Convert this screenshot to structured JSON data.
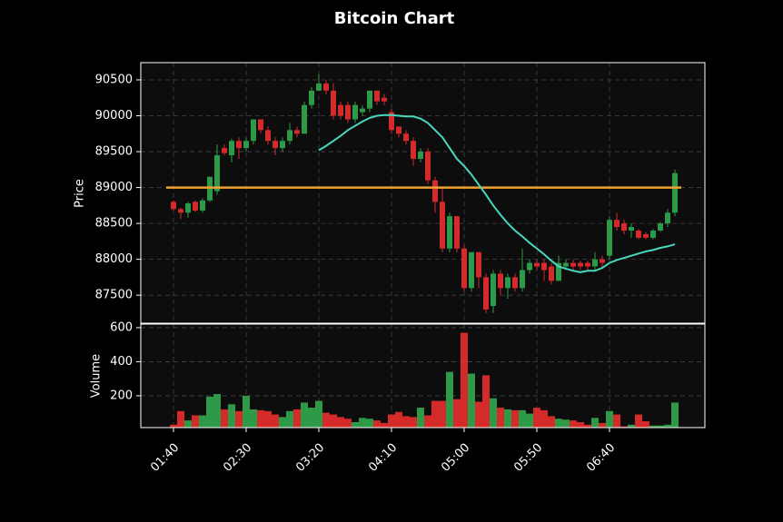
{
  "chart_data": {
    "type": "candlestick",
    "title": "Bitcoin Chart",
    "ylabel": "Price",
    "categories": [
      "01:40",
      "01:45",
      "01:50",
      "01:55",
      "02:00",
      "02:05",
      "02:10",
      "02:15",
      "02:20",
      "02:25",
      "02:30",
      "02:35",
      "02:40",
      "02:45",
      "02:50",
      "02:55",
      "03:00",
      "03:05",
      "03:10",
      "03:15",
      "03:20",
      "03:25",
      "03:30",
      "03:35",
      "03:40",
      "03:45",
      "03:50",
      "03:55",
      "04:00",
      "04:05",
      "04:10",
      "04:15",
      "04:20",
      "04:25",
      "04:30",
      "04:35",
      "04:40",
      "04:45",
      "04:50",
      "04:55",
      "05:00",
      "05:05",
      "05:10",
      "05:15",
      "05:20",
      "05:25",
      "05:30",
      "05:35",
      "05:40",
      "05:45",
      "05:50",
      "05:55",
      "06:00",
      "06:05",
      "06:10",
      "06:15",
      "06:20",
      "06:25",
      "06:30",
      "06:35",
      "06:40",
      "06:45",
      "06:50",
      "06:55",
      "07:00",
      "07:05",
      "07:10",
      "07:15",
      "07:20",
      "07:25"
    ],
    "xticks": [
      "01:40",
      "02:30",
      "03:20",
      "04:10",
      "05:00",
      "05:50",
      "06:40"
    ],
    "open": [
      88800,
      88700,
      88650,
      88800,
      88680,
      88820,
      88950,
      89550,
      89450,
      89650,
      89550,
      89650,
      89950,
      89800,
      89650,
      89550,
      89650,
      89800,
      89750,
      90150,
      90350,
      90450,
      90350,
      90150,
      90150,
      89950,
      90050,
      90100,
      90350,
      90250,
      90050,
      89850,
      89750,
      89650,
      89400,
      89500,
      89100,
      88800,
      88150,
      88600,
      88150,
      87600,
      88100,
      87750,
      87350,
      87800,
      87600,
      87750,
      87600,
      87850,
      87950,
      87950,
      87900,
      87700,
      87900,
      87950,
      87950,
      87950,
      87900,
      88000,
      88050,
      88550,
      88500,
      88400,
      88400,
      88350,
      88300,
      88400,
      88500,
      88650
    ],
    "high": [
      88820,
      88720,
      88800,
      88820,
      88850,
      89150,
      89600,
      89600,
      89680,
      89700,
      89700,
      89950,
      89950,
      89850,
      89700,
      89700,
      89900,
      89850,
      90200,
      90400,
      90580,
      90500,
      90450,
      90200,
      90200,
      90200,
      90150,
      90350,
      90350,
      90300,
      90100,
      89850,
      89800,
      89700,
      89550,
      89550,
      89150,
      89000,
      88650,
      88600,
      88200,
      88100,
      88100,
      87800,
      87850,
      87850,
      87800,
      87800,
      88150,
      88000,
      88000,
      88000,
      87950,
      88050,
      88000,
      88000,
      87980,
      87980,
      88100,
      88050,
      88600,
      88650,
      88550,
      88500,
      88420,
      88380,
      88420,
      88520,
      88700,
      89250
    ],
    "low": [
      88680,
      88560,
      88580,
      88660,
      88650,
      88800,
      88900,
      89450,
      89350,
      89400,
      89500,
      89600,
      89750,
      89600,
      89450,
      89500,
      89600,
      89700,
      89750,
      90100,
      90350,
      90300,
      89950,
      89950,
      89900,
      89900,
      90000,
      90050,
      90150,
      90150,
      89750,
      89700,
      89600,
      89300,
      89350,
      89050,
      88650,
      88100,
      88100,
      88100,
      87550,
      87550,
      87600,
      87250,
      87250,
      87500,
      87450,
      87550,
      87550,
      87800,
      87850,
      87700,
      87650,
      87700,
      87850,
      87850,
      87850,
      87850,
      87850,
      87900,
      88000,
      88400,
      88350,
      88300,
      88280,
      88280,
      88280,
      88380,
      88450,
      88600
    ],
    "close": [
      88700,
      88650,
      88780,
      88680,
      88820,
      89150,
      89450,
      89480,
      89650,
      89550,
      89650,
      89950,
      89800,
      89650,
      89550,
      89650,
      89800,
      89750,
      90150,
      90350,
      90450,
      90350,
      90000,
      90000,
      89950,
      90150,
      90100,
      90350,
      90200,
      90200,
      89800,
      89750,
      89650,
      89400,
      89500,
      89100,
      88800,
      88150,
      88600,
      88150,
      87600,
      88100,
      87750,
      87300,
      87800,
      87600,
      87750,
      87600,
      87850,
      87950,
      87900,
      87850,
      87700,
      87950,
      87950,
      87900,
      87900,
      87900,
      88000,
      87950,
      88550,
      88450,
      88400,
      88450,
      88300,
      88300,
      88400,
      88500,
      88650,
      89200
    ],
    "up_color": "#2e9a48",
    "down_color": "#d42a2a",
    "ylim": [
      87110,
      90740
    ],
    "yticks": [
      87500,
      88000,
      88500,
      89000,
      89500,
      90000,
      90500
    ],
    "grid": true,
    "ma": {
      "color": "#48d8c0",
      "values": [
        null,
        null,
        null,
        null,
        null,
        null,
        null,
        null,
        null,
        null,
        null,
        null,
        null,
        null,
        null,
        null,
        null,
        null,
        null,
        null,
        89520,
        89580,
        89650,
        89720,
        89800,
        89860,
        89920,
        89970,
        90000,
        90010,
        90010,
        90000,
        89990,
        89990,
        89960,
        89900,
        89800,
        89700,
        89550,
        89400,
        89300,
        89180,
        89040,
        88900,
        88750,
        88620,
        88500,
        88400,
        88320,
        88230,
        88150,
        88070,
        87980,
        87900,
        87870,
        87840,
        87820,
        87840,
        87840,
        87880,
        87950,
        87990,
        88020,
        88050,
        88080,
        88110,
        88130,
        88160,
        88180,
        88210
      ]
    },
    "hline": {
      "value": 89000,
      "color": "#f0a030"
    },
    "volume": {
      "ylabel": "Volume",
      "ylim": [
        13,
        621
      ],
      "yticks": [
        200,
        400,
        600
      ],
      "values": [
        30,
        110,
        55,
        85,
        85,
        195,
        210,
        120,
        150,
        110,
        200,
        120,
        115,
        110,
        90,
        75,
        110,
        120,
        160,
        130,
        170,
        100,
        90,
        75,
        65,
        45,
        70,
        65,
        55,
        40,
        90,
        105,
        80,
        75,
        130,
        85,
        170,
        170,
        340,
        180,
        570,
        330,
        165,
        320,
        185,
        130,
        120,
        115,
        115,
        95,
        130,
        115,
        80,
        65,
        60,
        55,
        45,
        30,
        70,
        40,
        110,
        90,
        20,
        30,
        90,
        50,
        25,
        25,
        30,
        160
      ]
    }
  }
}
